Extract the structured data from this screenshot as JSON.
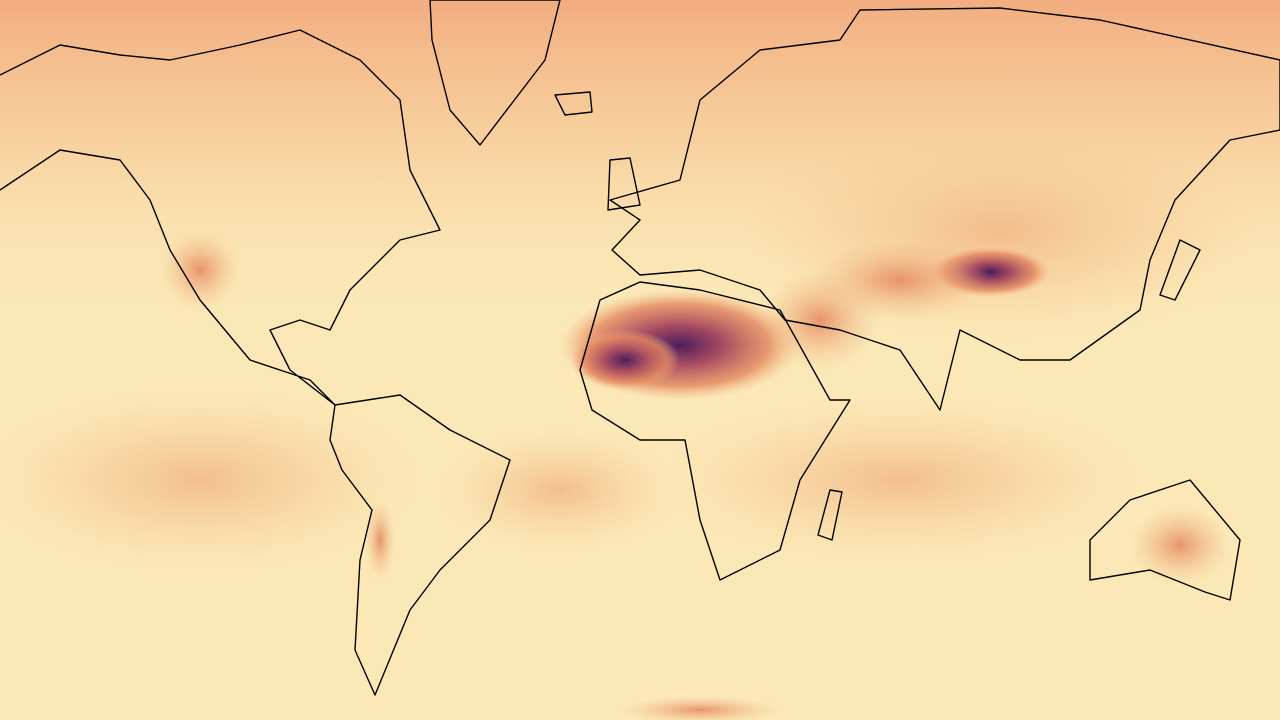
{
  "map": {
    "projection": "mercator",
    "colormap": [
      "#fcebb9",
      "#f6c08d",
      "#e98a62",
      "#c85a5a",
      "#7a3a6e",
      "#3d1b57"
    ],
    "coastline_color": "#000000"
  }
}
